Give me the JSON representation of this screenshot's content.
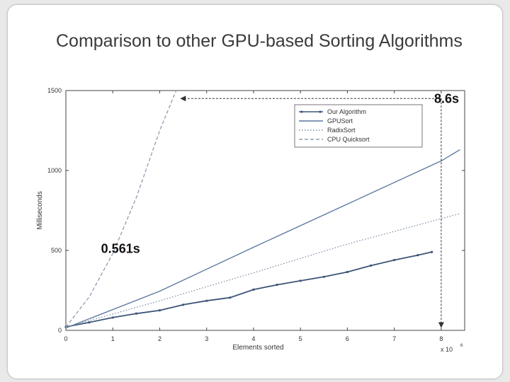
{
  "slide": {
    "title": "Comparison to other GPU-based Sorting Algorithms"
  },
  "chart_data": {
    "type": "line",
    "xlabel": "Elements sorted",
    "ylabel": "Milliseconds",
    "x_multiplier_label": "x 10",
    "x_multiplier_exponent": "6",
    "xlim": [
      0,
      8.5
    ],
    "ylim": [
      0,
      1500
    ],
    "x_ticks": [
      0,
      1,
      2,
      3,
      4,
      5,
      6,
      7,
      8
    ],
    "y_ticks": [
      0,
      500,
      1000,
      1500
    ],
    "grid": false,
    "legend_position": "top-right",
    "series": [
      {
        "name": "Our Algorithm",
        "style": "solid-markers",
        "color": "#3e5578",
        "x": [
          0,
          0.5,
          1,
          1.5,
          2,
          2.5,
          3,
          3.5,
          4,
          4.5,
          5,
          5.5,
          6,
          6.5,
          7,
          7.5,
          7.8
        ],
        "values": [
          22,
          50,
          80,
          105,
          125,
          160,
          185,
          205,
          255,
          285,
          310,
          335,
          365,
          405,
          440,
          470,
          490
        ]
      },
      {
        "name": "GPUSort",
        "style": "solid",
        "color": "#5b76a0",
        "x": [
          0,
          2,
          4,
          6,
          8,
          8.4
        ],
        "values": [
          15,
          245,
          520,
          790,
          1060,
          1130
        ]
      },
      {
        "name": "RadixSort",
        "style": "dotted",
        "color": "#7d8fa8",
        "x": [
          0,
          2,
          4,
          6,
          8.4
        ],
        "values": [
          20,
          185,
          360,
          540,
          730
        ]
      },
      {
        "name": "CPU Quicksort",
        "style": "dashed",
        "color": "#8f9cb0",
        "x": [
          0,
          0.5,
          1,
          1.5,
          2,
          2.35
        ],
        "values": [
          20,
          210,
          480,
          830,
          1250,
          1500
        ]
      }
    ],
    "annotations": [
      {
        "text": "8.6s",
        "x": 7.85,
        "y": 1450
      },
      {
        "text": "0.561s",
        "x": 0.75,
        "y": 510
      }
    ],
    "arrows": [
      {
        "from": [
          8.0,
          1450
        ],
        "to": [
          2.45,
          1450
        ]
      },
      {
        "from": [
          8.0,
          1450
        ],
        "to": [
          8.0,
          20
        ]
      }
    ]
  }
}
